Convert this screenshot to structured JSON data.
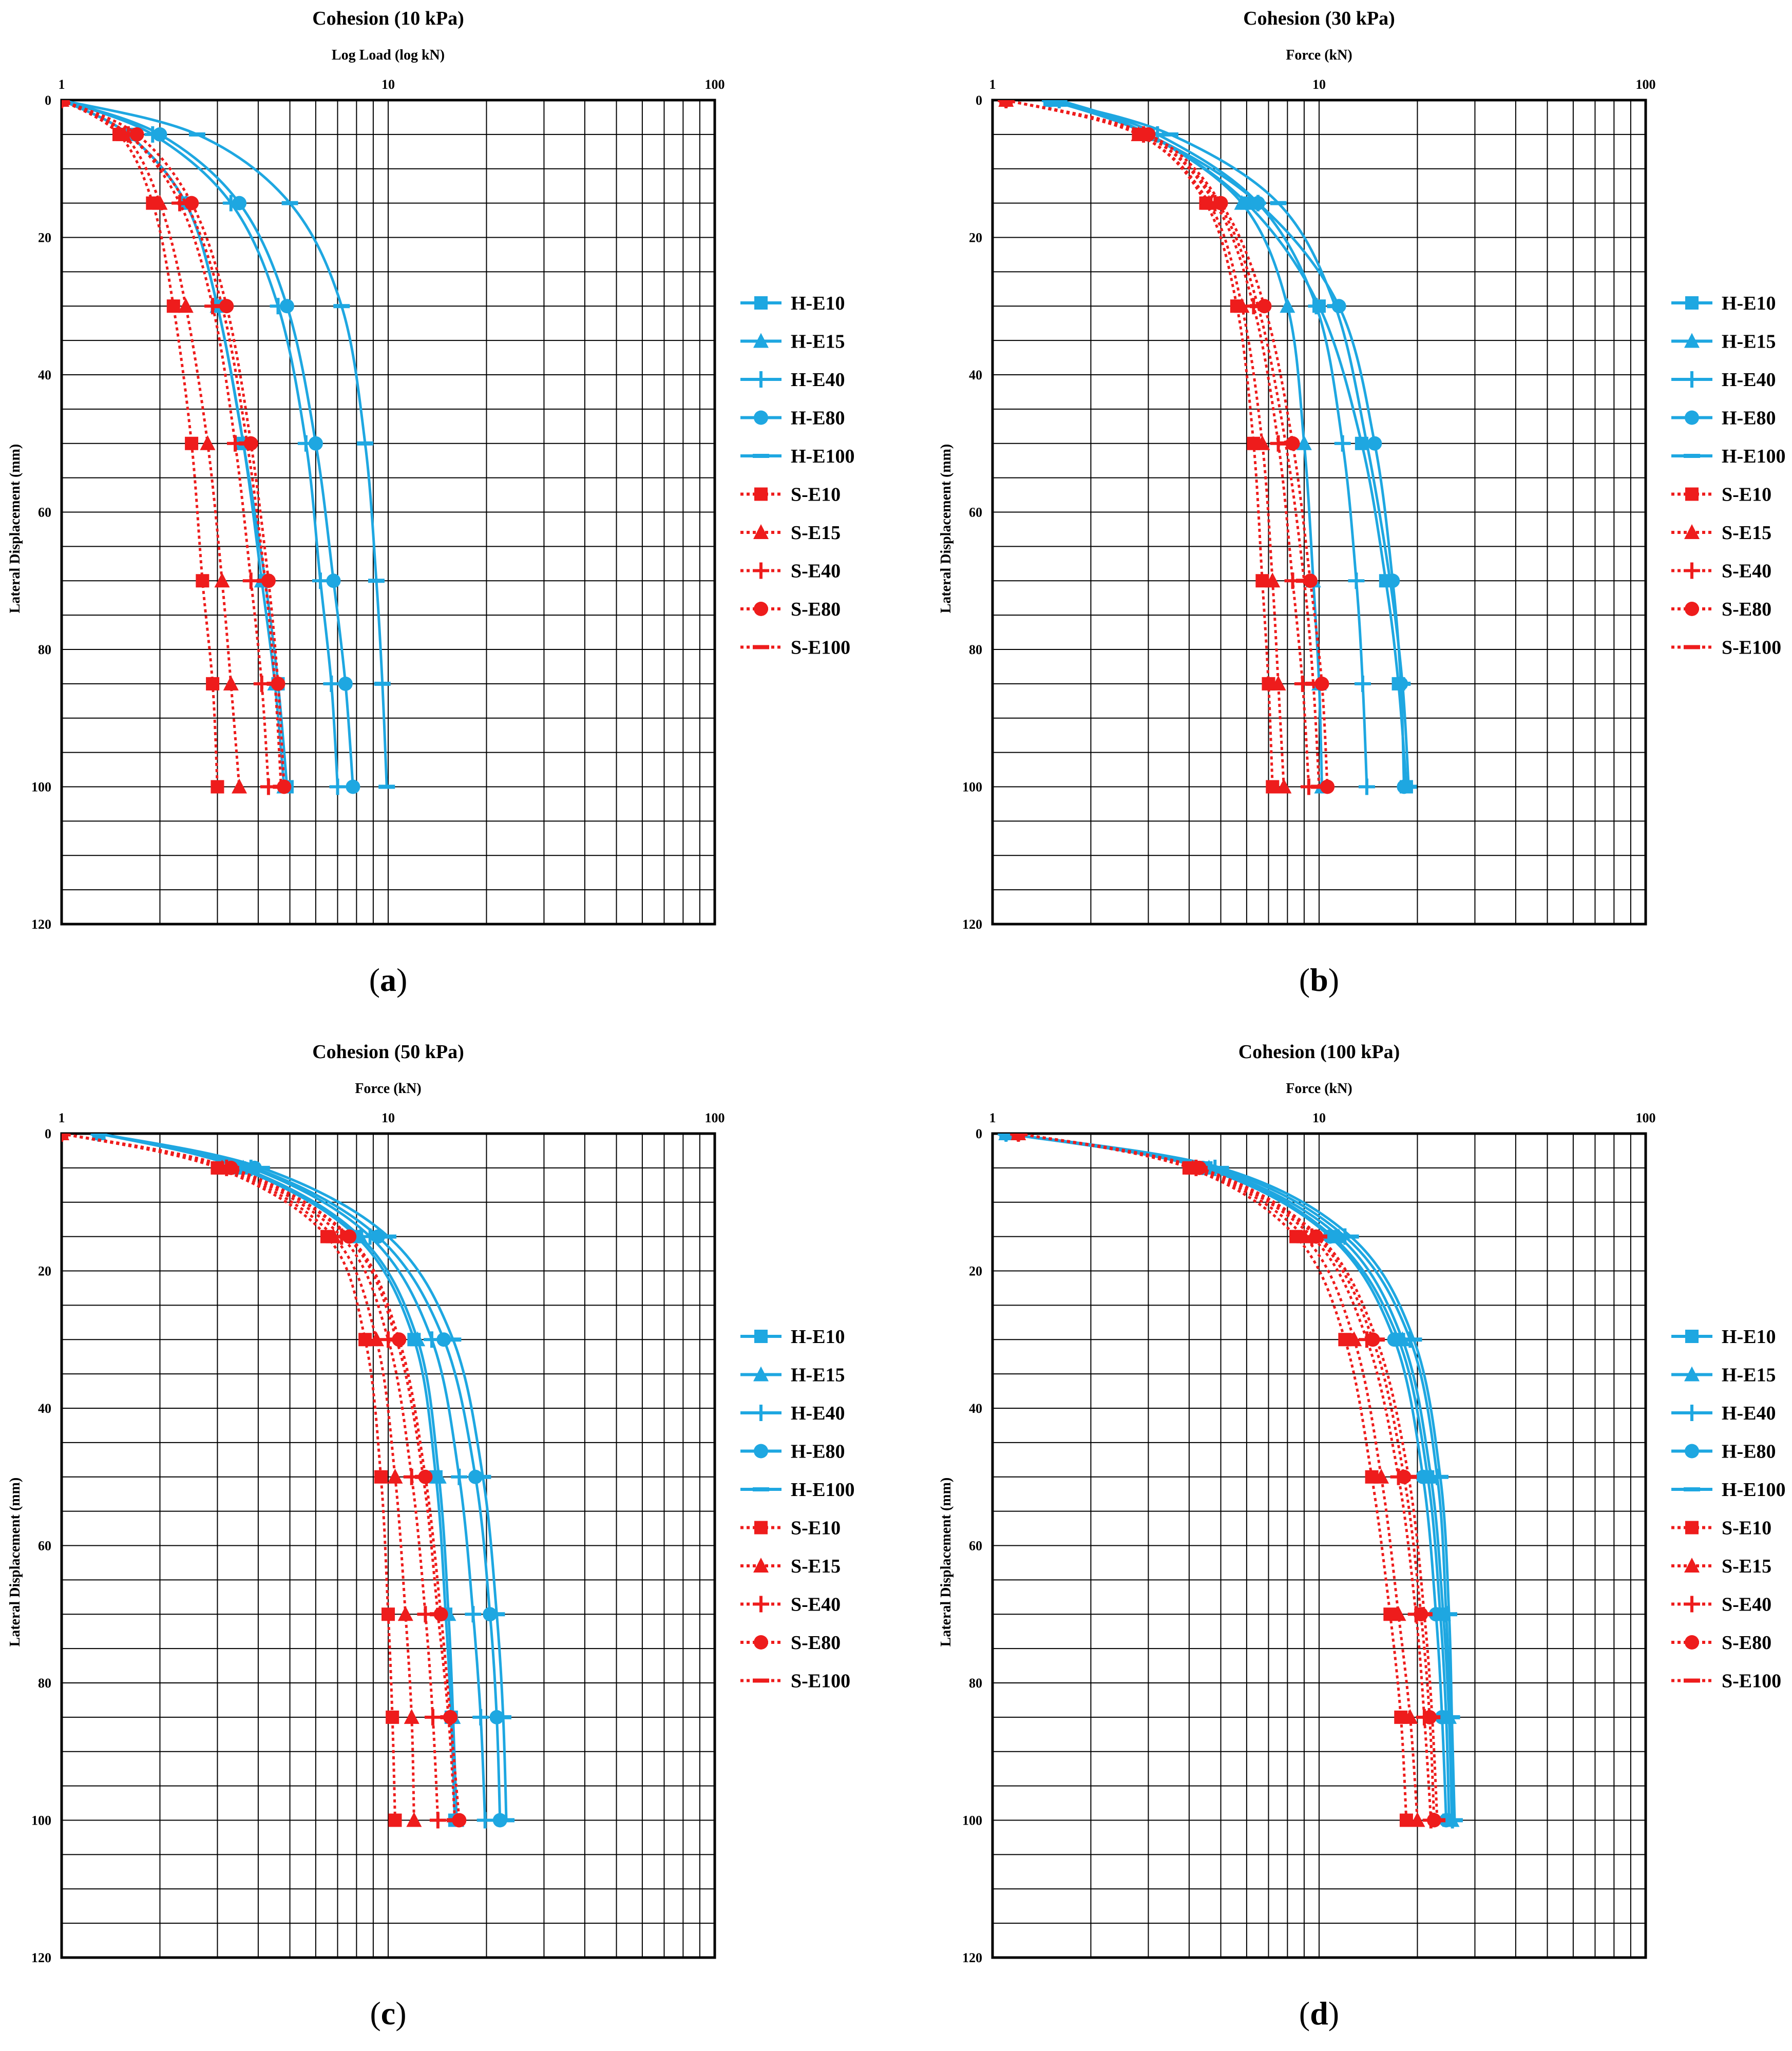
{
  "colors": {
    "H": "#1ea7e1",
    "S": "#ee1c1c",
    "grid": "#000000"
  },
  "series_names": [
    "H-E10",
    "H-E15",
    "H-E40",
    "H-E80",
    "H-E100",
    "S-E10",
    "S-E15",
    "S-E40",
    "S-E80",
    "S-E100"
  ],
  "chart_data": [
    {
      "type": "line",
      "panel_label": "a",
      "title": "Cohesion (10 kPa)",
      "xlabel": "Log Load (log kN)",
      "ylabel": "Lateral Displacement (mm)",
      "x_scale": "log",
      "xlim": [
        1,
        100
      ],
      "ylim": [
        0,
        120
      ],
      "x_ticks": [
        1,
        10,
        100
      ],
      "y_ticks": [
        0,
        20,
        40,
        60,
        80,
        100,
        120
      ],
      "legend": "right",
      "series": [
        {
          "name": "H-E10",
          "group": "H",
          "marker": "square",
          "x": [
            1.0,
            1.6,
            2.4,
            3.0,
            3.6,
            4.2,
            4.6,
            4.9
          ],
          "y": [
            0,
            5,
            15,
            30,
            50,
            70,
            85,
            100
          ]
        },
        {
          "name": "H-E15",
          "group": "H",
          "marker": "triangle",
          "x": [
            1.0,
            1.6,
            2.4,
            3.0,
            3.6,
            4.1,
            4.5,
            4.8
          ],
          "y": [
            0,
            5,
            15,
            30,
            50,
            70,
            85,
            100
          ]
        },
        {
          "name": "H-E40",
          "group": "H",
          "marker": "plus",
          "x": [
            1.0,
            1.9,
            3.3,
            4.6,
            5.6,
            6.2,
            6.7,
            7.0
          ],
          "y": [
            0,
            5,
            15,
            30,
            50,
            70,
            85,
            100
          ]
        },
        {
          "name": "H-E80",
          "group": "H",
          "marker": "circle",
          "x": [
            1.0,
            2.0,
            3.5,
            4.9,
            6.0,
            6.8,
            7.4,
            7.8
          ],
          "y": [
            0,
            5,
            15,
            30,
            50,
            70,
            85,
            100
          ]
        },
        {
          "name": "H-E100",
          "group": "H",
          "marker": "dash",
          "x": [
            1.0,
            2.6,
            5.0,
            7.2,
            8.5,
            9.2,
            9.6,
            9.9
          ],
          "y": [
            0,
            5,
            15,
            30,
            50,
            70,
            85,
            100
          ]
        },
        {
          "name": "S-E10",
          "group": "S",
          "marker": "square",
          "x": [
            1.0,
            1.5,
            1.9,
            2.2,
            2.5,
            2.7,
            2.9,
            3.0
          ],
          "y": [
            0,
            5,
            15,
            30,
            50,
            70,
            85,
            100
          ]
        },
        {
          "name": "S-E15",
          "group": "S",
          "marker": "triangle",
          "x": [
            1.0,
            1.55,
            2.0,
            2.4,
            2.8,
            3.1,
            3.3,
            3.5
          ],
          "y": [
            0,
            5,
            15,
            30,
            50,
            70,
            85,
            100
          ]
        },
        {
          "name": "S-E40",
          "group": "S",
          "marker": "plus",
          "x": [
            1.0,
            1.6,
            2.3,
            2.9,
            3.4,
            3.8,
            4.1,
            4.3
          ],
          "y": [
            0,
            5,
            15,
            30,
            50,
            70,
            85,
            100
          ]
        },
        {
          "name": "S-E80",
          "group": "S",
          "marker": "circle",
          "x": [
            1.0,
            1.7,
            2.5,
            3.2,
            3.8,
            4.3,
            4.6,
            4.8
          ],
          "y": [
            0,
            5,
            15,
            30,
            50,
            70,
            85,
            100
          ]
        },
        {
          "name": "S-E100",
          "group": "S",
          "marker": "dash",
          "x": [
            1.0,
            1.6,
            2.4,
            3.1,
            3.7,
            4.2,
            4.5,
            4.7
          ],
          "y": [
            0,
            5,
            15,
            30,
            50,
            70,
            85,
            100
          ]
        }
      ]
    },
    {
      "type": "line",
      "panel_label": "b",
      "title": "Cohesion (30 kPa)",
      "xlabel": "Force (kN)",
      "ylabel": "Lateral Displacement (mm)",
      "x_scale": "log",
      "xlim": [
        1,
        100
      ],
      "ylim": [
        0,
        120
      ],
      "x_ticks": [
        1,
        10,
        100
      ],
      "y_ticks": [
        0,
        20,
        40,
        60,
        80,
        100,
        120
      ],
      "legend": "right",
      "series": [
        {
          "name": "H-E10",
          "group": "H",
          "marker": "square",
          "x": [
            1.5,
            3.0,
            6.0,
            10.0,
            13.5,
            16.0,
            17.5,
            18.5
          ],
          "y": [
            0,
            5,
            15,
            30,
            50,
            70,
            85,
            100
          ]
        },
        {
          "name": "H-E15",
          "group": "H",
          "marker": "triangle",
          "x": [
            1.6,
            3.0,
            5.8,
            8.0,
            9.0,
            9.6,
            10.0,
            10.2
          ],
          "y": [
            0,
            5,
            15,
            30,
            50,
            70,
            85,
            100
          ]
        },
        {
          "name": "H-E40",
          "group": "H",
          "marker": "plus",
          "x": [
            1.6,
            3.2,
            6.5,
            9.8,
            11.8,
            13.0,
            13.6,
            14.0
          ],
          "y": [
            0,
            5,
            15,
            30,
            50,
            70,
            85,
            100
          ]
        },
        {
          "name": "H-E80",
          "group": "H",
          "marker": "circle",
          "x": [
            1.5,
            3.0,
            6.5,
            11.5,
            14.8,
            16.8,
            17.8,
            18.2
          ],
          "y": [
            0,
            5,
            15,
            30,
            50,
            70,
            85,
            100
          ]
        },
        {
          "name": "H-E100",
          "group": "H",
          "marker": "dash",
          "x": [
            1.5,
            3.5,
            7.5,
            11.2,
            14.0,
            16.5,
            18.0,
            18.8
          ],
          "y": [
            0,
            5,
            15,
            30,
            50,
            70,
            85,
            100
          ]
        },
        {
          "name": "S-E10",
          "group": "S",
          "marker": "square",
          "x": [
            1.1,
            2.8,
            4.5,
            5.6,
            6.3,
            6.7,
            7.0,
            7.2
          ],
          "y": [
            0,
            5,
            15,
            30,
            50,
            70,
            85,
            100
          ]
        },
        {
          "name": "S-E15",
          "group": "S",
          "marker": "triangle",
          "x": [
            1.1,
            2.8,
            4.6,
            5.8,
            6.7,
            7.2,
            7.5,
            7.8
          ],
          "y": [
            0,
            5,
            15,
            30,
            50,
            70,
            85,
            100
          ]
        },
        {
          "name": "S-E40",
          "group": "S",
          "marker": "plus",
          "x": [
            1.1,
            2.9,
            4.8,
            6.3,
            7.5,
            8.3,
            8.9,
            9.3
          ],
          "y": [
            0,
            5,
            15,
            30,
            50,
            70,
            85,
            100
          ]
        },
        {
          "name": "S-E80",
          "group": "S",
          "marker": "circle",
          "x": [
            1.1,
            3.0,
            5.0,
            6.8,
            8.3,
            9.4,
            10.2,
            10.6
          ],
          "y": [
            0,
            5,
            15,
            30,
            50,
            70,
            85,
            100
          ]
        },
        {
          "name": "S-E100",
          "group": "S",
          "marker": "dash",
          "x": [
            1.1,
            2.9,
            4.9,
            6.5,
            7.9,
            9.0,
            9.6,
            10.0
          ],
          "y": [
            0,
            5,
            15,
            30,
            50,
            70,
            85,
            100
          ]
        }
      ]
    },
    {
      "type": "line",
      "panel_label": "c",
      "title": "Cohesion (50 kPa)",
      "xlabel": "Force (kN)",
      "ylabel": "Lateral Displacement (mm)",
      "x_scale": "log",
      "xlim": [
        1,
        100
      ],
      "ylim": [
        0,
        120
      ],
      "x_ticks": [
        1,
        10,
        100
      ],
      "y_ticks": [
        0,
        20,
        40,
        60,
        80,
        100,
        120
      ],
      "legend": "right",
      "series": [
        {
          "name": "H-E10",
          "group": "H",
          "marker": "square",
          "x": [
            1.3,
            3.5,
            8.0,
            12.0,
            14.0,
            15.0,
            15.6,
            16.0
          ],
          "y": [
            0,
            5,
            15,
            30,
            50,
            70,
            85,
            100
          ]
        },
        {
          "name": "H-E15",
          "group": "H",
          "marker": "triangle",
          "x": [
            1.3,
            3.6,
            8.2,
            12.3,
            14.3,
            15.3,
            15.8,
            16.2
          ],
          "y": [
            0,
            5,
            15,
            30,
            50,
            70,
            85,
            100
          ]
        },
        {
          "name": "H-E40",
          "group": "H",
          "marker": "plus",
          "x": [
            1.3,
            3.8,
            8.8,
            13.6,
            16.5,
            18.2,
            19.2,
            19.8
          ],
          "y": [
            0,
            5,
            15,
            30,
            50,
            70,
            85,
            100
          ]
        },
        {
          "name": "H-E80",
          "group": "H",
          "marker": "circle",
          "x": [
            1.3,
            3.9,
            9.3,
            14.8,
            18.5,
            20.5,
            21.5,
            22.0
          ],
          "y": [
            0,
            5,
            15,
            30,
            50,
            70,
            85,
            100
          ]
        },
        {
          "name": "H-E100",
          "group": "H",
          "marker": "dash",
          "x": [
            1.3,
            4.1,
            10.0,
            15.8,
            19.5,
            21.5,
            22.5,
            23.0
          ],
          "y": [
            0,
            5,
            15,
            30,
            50,
            70,
            85,
            100
          ]
        },
        {
          "name": "S-E10",
          "group": "S",
          "marker": "square",
          "x": [
            1.0,
            3.0,
            6.5,
            8.5,
            9.5,
            10.0,
            10.3,
            10.5
          ],
          "y": [
            0,
            5,
            15,
            30,
            50,
            70,
            85,
            100
          ]
        },
        {
          "name": "S-E15",
          "group": "S",
          "marker": "triangle",
          "x": [
            1.0,
            3.1,
            6.8,
            9.2,
            10.5,
            11.3,
            11.8,
            12.0
          ],
          "y": [
            0,
            5,
            15,
            30,
            50,
            70,
            85,
            100
          ]
        },
        {
          "name": "S-E40",
          "group": "S",
          "marker": "plus",
          "x": [
            1.0,
            3.2,
            7.2,
            10.0,
            11.8,
            13.0,
            13.7,
            14.2
          ],
          "y": [
            0,
            5,
            15,
            30,
            50,
            70,
            85,
            100
          ]
        },
        {
          "name": "S-E80",
          "group": "S",
          "marker": "circle",
          "x": [
            1.0,
            3.3,
            7.6,
            10.8,
            13.0,
            14.5,
            15.5,
            16.5
          ],
          "y": [
            0,
            5,
            15,
            30,
            50,
            70,
            85,
            100
          ]
        },
        {
          "name": "S-E100",
          "group": "S",
          "marker": "dash",
          "x": [
            1.0,
            3.3,
            7.5,
            10.6,
            12.8,
            14.2,
            15.3,
            16.0
          ],
          "y": [
            0,
            5,
            15,
            30,
            50,
            70,
            85,
            100
          ]
        }
      ]
    },
    {
      "type": "line",
      "panel_label": "d",
      "title": "Cohesion (100 kPa)",
      "xlabel": "Force (kN)",
      "ylabel": "Lateral Displacement (mm)",
      "x_scale": "log",
      "xlim": [
        1,
        100
      ],
      "ylim": [
        0,
        120
      ],
      "x_ticks": [
        1,
        10,
        100
      ],
      "y_ticks": [
        0,
        20,
        40,
        60,
        80,
        100,
        120
      ],
      "legend": "right",
      "series": [
        {
          "name": "H-E10",
          "group": "H",
          "marker": "square",
          "x": [
            1.1,
            4.5,
            11.0,
            17.5,
            21.5,
            23.5,
            24.5,
            25.0
          ],
          "y": [
            0,
            5,
            15,
            30,
            50,
            70,
            85,
            100
          ]
        },
        {
          "name": "H-E15",
          "group": "H",
          "marker": "triangle",
          "x": [
            1.1,
            4.6,
            11.5,
            18.0,
            22.0,
            24.0,
            25.0,
            25.5
          ],
          "y": [
            0,
            5,
            15,
            30,
            50,
            70,
            85,
            100
          ]
        },
        {
          "name": "H-E40",
          "group": "H",
          "marker": "plus",
          "x": [
            1.1,
            4.8,
            12.0,
            19.0,
            23.0,
            24.5,
            25.2,
            25.6
          ],
          "y": [
            0,
            5,
            15,
            30,
            50,
            70,
            85,
            100
          ]
        },
        {
          "name": "H-E80",
          "group": "H",
          "marker": "circle",
          "x": [
            1.1,
            4.4,
            10.8,
            17.0,
            20.8,
            22.8,
            23.8,
            24.5
          ],
          "y": [
            0,
            5,
            15,
            30,
            50,
            70,
            85,
            100
          ]
        },
        {
          "name": "H-E100",
          "group": "H",
          "marker": "dash",
          "x": [
            1.1,
            5.0,
            12.5,
            19.5,
            23.5,
            25.0,
            25.5,
            26.0
          ],
          "y": [
            0,
            5,
            15,
            30,
            50,
            70,
            85,
            100
          ]
        },
        {
          "name": "S-E10",
          "group": "S",
          "marker": "square",
          "x": [
            1.2,
            4.0,
            8.5,
            12.0,
            14.5,
            16.5,
            17.8,
            18.5
          ],
          "y": [
            0,
            5,
            15,
            30,
            50,
            70,
            85,
            100
          ]
        },
        {
          "name": "S-E15",
          "group": "S",
          "marker": "triangle",
          "x": [
            1.2,
            4.1,
            9.0,
            12.8,
            15.5,
            17.5,
            19.0,
            20.0
          ],
          "y": [
            0,
            5,
            15,
            30,
            50,
            70,
            85,
            100
          ]
        },
        {
          "name": "S-E40",
          "group": "S",
          "marker": "plus",
          "x": [
            1.2,
            4.2,
            9.5,
            14.0,
            17.5,
            19.8,
            21.0,
            22.0
          ],
          "y": [
            0,
            5,
            15,
            30,
            50,
            70,
            85,
            100
          ]
        },
        {
          "name": "S-E80",
          "group": "S",
          "marker": "circle",
          "x": [
            1.2,
            4.3,
            9.8,
            14.6,
            18.2,
            20.5,
            21.8,
            22.5
          ],
          "y": [
            0,
            5,
            15,
            30,
            50,
            70,
            85,
            100
          ]
        },
        {
          "name": "S-E100",
          "group": "S",
          "marker": "dash",
          "x": [
            1.2,
            4.3,
            10.0,
            15.0,
            18.8,
            21.0,
            22.2,
            23.0
          ],
          "y": [
            0,
            5,
            15,
            30,
            50,
            70,
            85,
            100
          ]
        }
      ]
    }
  ]
}
